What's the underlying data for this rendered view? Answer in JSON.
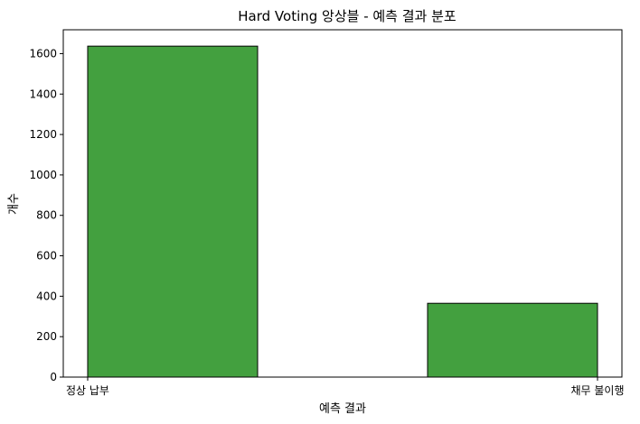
{
  "chart_data": {
    "type": "bar",
    "title": "Hard Voting 앙상블 - 예측 결과 분포",
    "xlabel": "예측 결과",
    "ylabel": "개수",
    "categories": [
      "정상 납부",
      "채무 불이행"
    ],
    "values": [
      1637,
      365
    ],
    "yticks": [
      0,
      200,
      400,
      600,
      800,
      1000,
      1200,
      1400,
      1600
    ],
    "ylim": [
      0,
      1718
    ],
    "bar_color": "#43a03f",
    "edge_color": "#000000",
    "grid": false,
    "legend": "none"
  }
}
